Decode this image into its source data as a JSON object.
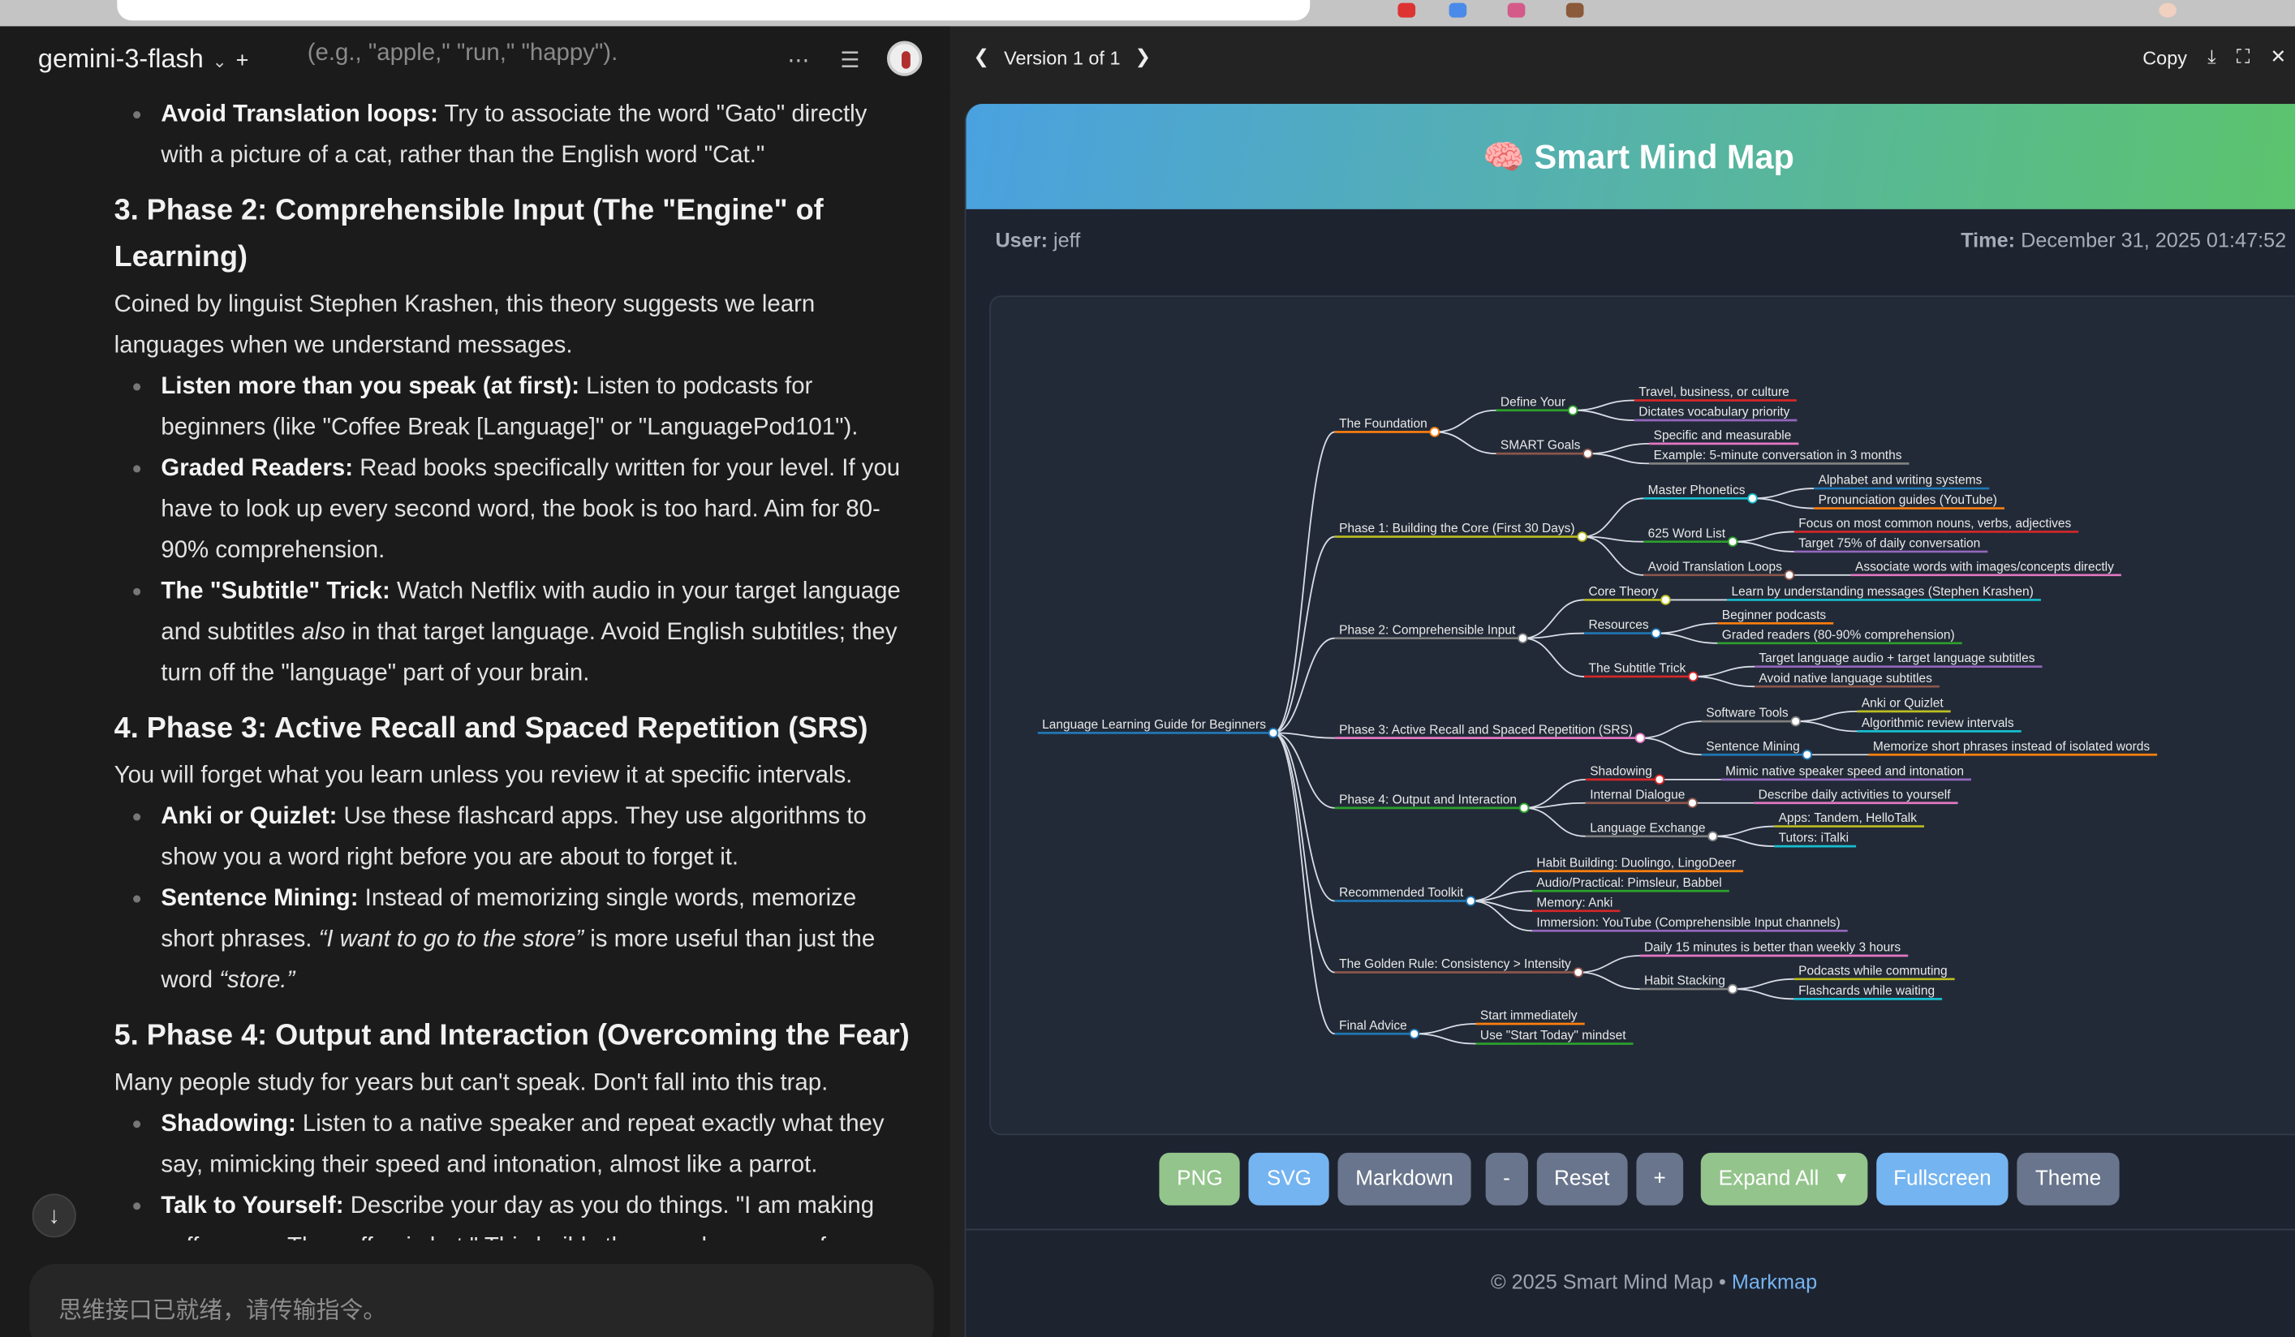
{
  "browser": {
    "colors": {
      "bar": "#c4c4c4"
    }
  },
  "chat": {
    "model": "gemini-3-flash",
    "top_fade": "(e.g., \"apple,\" \"run,\" \"happy\").",
    "b1": {
      "bold": "Avoid Translation loops:",
      "text": " Try to associate the word \"Gato\" directly with a picture of a cat, rather than the English word \"Cat.\""
    },
    "h3": "3. Phase 2: Comprehensible Input (The \"Engine\" of Learning)",
    "p3": "Coined by linguist Stephen Krashen, this theory suggests we learn languages when we understand messages.",
    "l3": [
      {
        "bold": "Listen more than you speak (at first):",
        "text": " Listen to podcasts for beginners (like \"Coffee Break [Language]\" or \"LanguagePod101\")."
      },
      {
        "bold": "Graded Readers:",
        "text": " Read books specifically written for your level. If you have to look up every second word, the book is too hard. Aim for 80-90% comprehension."
      },
      {
        "bold": "The \"Subtitle\" Trick:",
        "text": " Watch Netflix with audio in your target language and subtitles ",
        "em": "also",
        "text2": " in that target language. Avoid English subtitles; they turn off the \"language\" part of your brain."
      }
    ],
    "h4": "4. Phase 3: Active Recall and Spaced Repetition (SRS)",
    "p4": "You will forget what you learn unless you review it at specific intervals.",
    "l4": [
      {
        "bold": "Anki or Quizlet:",
        "text": " Use these flashcard apps. They use algorithms to show you a word right before you are about to forget it."
      },
      {
        "bold": "Sentence Mining:",
        "text": " Instead of memorizing single words, memorize short phrases. ",
        "em": "“I want to go to the store”",
        "text2": " is more useful than just the word ",
        "em2": "“store.”"
      }
    ],
    "h5": "5. Phase 4: Output and Interaction (Overcoming the Fear)",
    "p5": "Many people study for years but can't speak. Don't fall into this trap.",
    "l5": [
      {
        "bold": "Shadowing:",
        "text": " Listen to a native speaker and repeat exactly what they say, mimicking their speed and intonation, almost like a parrot."
      },
      {
        "bold": "Talk to Yourself:",
        "text": " Describe your day as you do things. \"I am making coffee now. The coffee is hot.\" This builds the muscle memory for"
      }
    ],
    "input_placeholder": "思维接口已就绪，请传输指令。"
  },
  "artifact": {
    "version": "Version 1 of 1",
    "copy": "Copy",
    "title": "Smart Mind Map",
    "title_icon": "🧠",
    "user_label": "User:",
    "user": "jeff",
    "time_label": "Time:",
    "time": "December 31, 2025 01:47:52",
    "buttons": {
      "png": "PNG",
      "svg": "SVG",
      "markdown": "Markdown",
      "zoom_out": "-",
      "reset": "Reset",
      "zoom_in": "+",
      "expand": "Expand All",
      "fullscreen": "Fullscreen",
      "theme": "Theme"
    },
    "footer": "© 2025 Smart Mind Map • ",
    "footer_link": "Markmap",
    "colors": {
      "green": "#93c48b",
      "blue": "#74b4f0",
      "slate": "#68758c",
      "panel": "#1e2330"
    }
  },
  "mindmap": {
    "label": "Language Learning Guide for Beginners",
    "color": "#1f77b4",
    "children": [
      {
        "label": "The Foundation",
        "color": "#ff7f0e",
        "children": [
          {
            "label": "Define Your",
            "color": "#2ca02c",
            "children": [
              {
                "label": "Travel, business, or culture",
                "color": "#d62728"
              },
              {
                "label": "Dictates vocabulary priority",
                "color": "#9467bd"
              }
            ]
          },
          {
            "label": "SMART Goals",
            "color": "#8c564b",
            "children": [
              {
                "label": "Specific and measurable",
                "color": "#e377c2"
              },
              {
                "label": "Example: 5-minute conversation in 3 months",
                "color": "#7f7f7f"
              }
            ]
          }
        ]
      },
      {
        "label": "Phase 1: Building the Core (First 30 Days)",
        "color": "#bcbd22",
        "children": [
          {
            "label": "Master Phonetics",
            "color": "#17becf",
            "children": [
              {
                "label": "Alphabet and writing systems",
                "color": "#1f77b4"
              },
              {
                "label": "Pronunciation guides (YouTube)",
                "color": "#ff7f0e"
              }
            ]
          },
          {
            "label": "625 Word List",
            "color": "#2ca02c",
            "children": [
              {
                "label": "Focus on most common nouns, verbs, adjectives",
                "color": "#d62728"
              },
              {
                "label": "Target 75% of daily conversation",
                "color": "#9467bd"
              }
            ]
          },
          {
            "label": "Avoid Translation Loops",
            "color": "#8c564b",
            "children": [
              {
                "label": "Associate words with images/concepts directly",
                "color": "#e377c2"
              }
            ]
          }
        ]
      },
      {
        "label": "Phase 2: Comprehensible Input",
        "color": "#7f7f7f",
        "children": [
          {
            "label": "Core Theory",
            "color": "#bcbd22",
            "children": [
              {
                "label": "Learn by understanding messages (Stephen Krashen)",
                "color": "#17becf"
              }
            ]
          },
          {
            "label": "Resources",
            "color": "#1f77b4",
            "children": [
              {
                "label": "Beginner podcasts",
                "color": "#ff7f0e"
              },
              {
                "label": "Graded readers (80-90% comprehension)",
                "color": "#2ca02c"
              }
            ]
          },
          {
            "label": "The Subtitle Trick",
            "color": "#d62728",
            "children": [
              {
                "label": "Target language audio + target language subtitles",
                "color": "#9467bd"
              },
              {
                "label": "Avoid native language subtitles",
                "color": "#8c564b"
              }
            ]
          }
        ]
      },
      {
        "label": "Phase 3: Active Recall and Spaced Repetition (SRS)",
        "color": "#e377c2",
        "children": [
          {
            "label": "Software Tools",
            "color": "#7f7f7f",
            "children": [
              {
                "label": "Anki or Quizlet",
                "color": "#bcbd22"
              },
              {
                "label": "Algorithmic review intervals",
                "color": "#17becf"
              }
            ]
          },
          {
            "label": "Sentence Mining",
            "color": "#1f77b4",
            "children": [
              {
                "label": "Memorize short phrases instead of isolated words",
                "color": "#ff7f0e"
              }
            ]
          }
        ]
      },
      {
        "label": "Phase 4: Output and Interaction",
        "color": "#2ca02c",
        "children": [
          {
            "label": "Shadowing",
            "color": "#d62728",
            "children": [
              {
                "label": "Mimic native speaker speed and intonation",
                "color": "#9467bd"
              }
            ]
          },
          {
            "label": "Internal Dialogue",
            "color": "#8c564b",
            "children": [
              {
                "label": "Describe daily activities to yourself",
                "color": "#e377c2"
              }
            ]
          },
          {
            "label": "Language Exchange",
            "color": "#7f7f7f",
            "children": [
              {
                "label": "Apps: Tandem, HelloTalk",
                "color": "#bcbd22"
              },
              {
                "label": "Tutors: iTalki",
                "color": "#17becf"
              }
            ]
          }
        ]
      },
      {
        "label": "Recommended Toolkit",
        "color": "#1f77b4",
        "children": [
          {
            "label": "Habit Building: Duolingo, LingoDeer",
            "color": "#ff7f0e"
          },
          {
            "label": "Audio/Practical: Pimsleur, Babbel",
            "color": "#2ca02c"
          },
          {
            "label": "Memory: Anki",
            "color": "#d62728"
          },
          {
            "label": "Immersion: YouTube (Comprehensible Input channels)",
            "color": "#9467bd"
          }
        ]
      },
      {
        "label": "The Golden Rule: Consistency > Intensity",
        "color": "#8c564b",
        "children": [
          {
            "label": "Daily 15 minutes is better than weekly 3 hours",
            "color": "#e377c2"
          },
          {
            "label": "Habit Stacking",
            "color": "#7f7f7f",
            "children": [
              {
                "label": "Podcasts while commuting",
                "color": "#bcbd22"
              },
              {
                "label": "Flashcards while waiting",
                "color": "#17becf"
              }
            ]
          }
        ]
      },
      {
        "label": "Final Advice",
        "color": "#1f77b4",
        "children": [
          {
            "label": "Start immediately",
            "color": "#ff7f0e"
          },
          {
            "label": "Use \"Start Today\" mindset",
            "color": "#2ca02c"
          }
        ]
      }
    ]
  }
}
